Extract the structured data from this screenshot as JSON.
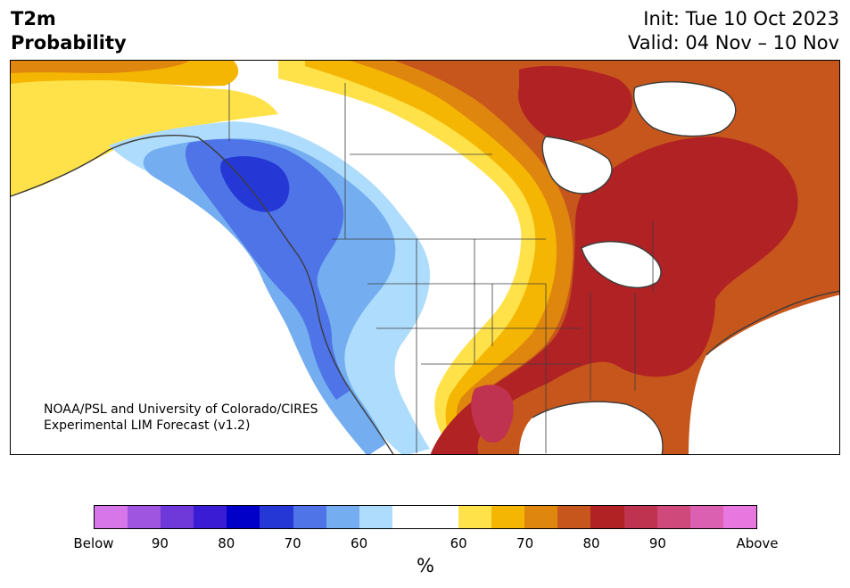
{
  "header": {
    "variable": "T2m",
    "measure": "Probability",
    "init": "Init: Tue 10 Oct 2023",
    "valid": "Valid: 04 Nov – 10 Nov"
  },
  "credit": {
    "line1": "NOAA/PSL and University of Colorado/CIRES",
    "line2": "Experimental LIM Forecast (v1.2)"
  },
  "colorbar": {
    "colors": [
      "#d676e8",
      "#9f55e0",
      "#6f38d8",
      "#3a1cd4",
      "#0000c8",
      "#2538d6",
      "#4e74e8",
      "#74aef0",
      "#aedcfc",
      "#ffffff",
      "#ffffff",
      "#ffe24a",
      "#f4b602",
      "#df860e",
      "#c7561c",
      "#b12224",
      "#c03350",
      "#cf4a7a",
      "#dc60b2",
      "#e878e0"
    ],
    "tick_labels": [
      "Below",
      "90",
      "80",
      "70",
      "60",
      "60",
      "70",
      "80",
      "90",
      "Above"
    ],
    "unit": "%"
  },
  "legend": {
    "palette": {
      "warm_60": "#ffe24a",
      "warm_65": "#f4b602",
      "warm_70": "#df860e",
      "warm_75": "#c7561c",
      "warm_80": "#b12224",
      "warm_85": "#c03350",
      "cool_60": "#aedcfc",
      "cool_65": "#74aef0",
      "cool_70": "#4e74e8",
      "cool_75": "#2538d6",
      "land": "#ffffff",
      "boundary": "#3c3c3c"
    }
  }
}
